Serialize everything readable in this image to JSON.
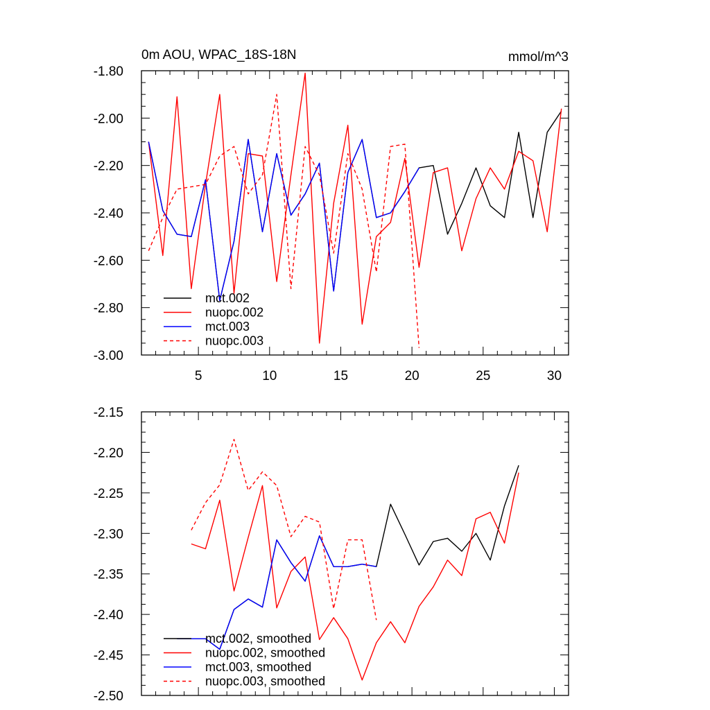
{
  "chart_data": [
    {
      "type": "line",
      "title": "0m AOU, WPAC_18S-18N",
      "units": "mmol/m^3",
      "xlim": [
        1,
        31
      ],
      "ylim": [
        -3.0,
        -1.8
      ],
      "xticks": [
        5,
        10,
        15,
        20,
        25,
        30
      ],
      "xtick_labels": [
        "5",
        "10",
        "15",
        "20",
        "25",
        "30"
      ],
      "yticks": [
        -3.0,
        -2.8,
        -2.6,
        -2.4,
        -2.2,
        -2.0,
        -1.8
      ],
      "ytick_labels": [
        "-3.00",
        "-2.80",
        "-2.60",
        "-2.40",
        "-2.20",
        "-2.00",
        "-1.80"
      ],
      "legend": "bottom-left",
      "series": [
        {
          "name": "mct.002",
          "color": "#000000",
          "dash": "solid",
          "x": [
            1.5,
            2.5,
            3.5,
            4.5,
            5.5,
            6.5,
            7.5,
            8.5,
            9.5,
            10.5,
            11.5,
            12.5,
            13.5,
            14.5,
            15.5,
            16.5,
            17.5,
            18.5,
            19.5,
            20.5,
            21.5,
            22.5,
            23.5,
            24.5,
            25.5,
            26.5,
            27.5,
            28.5,
            29.5,
            30.5
          ],
          "values": [
            -2.1,
            -2.39,
            -2.49,
            -2.5,
            -2.26,
            -2.77,
            -2.52,
            -2.09,
            -2.48,
            -2.15,
            -2.41,
            -2.32,
            -2.19,
            -2.73,
            -2.23,
            -2.09,
            -2.42,
            -2.4,
            -2.31,
            -2.21,
            -2.2,
            -2.49,
            -2.36,
            -2.21,
            -2.37,
            -2.42,
            -2.06,
            -2.42,
            -2.06,
            -1.97
          ]
        },
        {
          "name": "nuopc.002",
          "color": "#ff0000",
          "dash": "solid",
          "x": [
            1.5,
            2.5,
            3.5,
            4.5,
            5.5,
            6.5,
            7.5,
            8.5,
            9.5,
            10.5,
            11.5,
            12.5,
            13.5,
            14.5,
            15.5,
            16.5,
            17.5,
            18.5,
            19.5,
            20.5,
            21.5,
            22.5,
            23.5,
            24.5,
            25.5,
            26.5,
            27.5,
            28.5,
            29.5,
            30.5
          ],
          "values": [
            -2.1,
            -2.58,
            -1.91,
            -2.72,
            -2.28,
            -1.9,
            -2.74,
            -2.15,
            -2.16,
            -2.69,
            -2.24,
            -1.81,
            -2.95,
            -2.36,
            -2.03,
            -2.87,
            -2.5,
            -2.44,
            -2.17,
            -2.63,
            -2.23,
            -2.21,
            -2.56,
            -2.34,
            -2.21,
            -2.3,
            -2.14,
            -2.18,
            -2.48,
            -1.96
          ]
        },
        {
          "name": "mct.003",
          "color": "#0000ff",
          "dash": "solid",
          "x": [
            1.5,
            2.5,
            3.5,
            4.5,
            5.5,
            6.5,
            7.5,
            8.5,
            9.5,
            10.5,
            11.5,
            12.5,
            13.5,
            14.5,
            15.5,
            16.5,
            17.5,
            18.5,
            19.5,
            20.5
          ],
          "values": [
            -2.1,
            -2.39,
            -2.49,
            -2.5,
            -2.26,
            -2.77,
            -2.52,
            -2.09,
            -2.48,
            -2.15,
            -2.41,
            -2.32,
            -2.19,
            -2.73,
            -2.23,
            -2.09,
            -2.42,
            -2.4,
            -2.31,
            -2.21
          ]
        },
        {
          "name": "nuopc.003",
          "color": "#ff0000",
          "dash": "dashed",
          "x": [
            1.5,
            2.5,
            3.5,
            4.5,
            5.5,
            6.5,
            7.5,
            8.5,
            9.5,
            10.5,
            11.5,
            12.5,
            13.5,
            14.5,
            15.5,
            16.5,
            17.5,
            18.5,
            19.5,
            20.5
          ],
          "values": [
            -2.56,
            -2.42,
            -2.3,
            -2.29,
            -2.28,
            -2.16,
            -2.12,
            -2.32,
            -2.24,
            -1.9,
            -2.72,
            -2.12,
            -2.24,
            -2.57,
            -2.15,
            -2.3,
            -2.65,
            -2.12,
            -2.11,
            -2.97
          ]
        }
      ]
    },
    {
      "type": "line",
      "title": "",
      "xlim": [
        1,
        31
      ],
      "ylim": [
        -2.5,
        -2.15
      ],
      "xticks": [
        5,
        10,
        15,
        20,
        25,
        30
      ],
      "xtick_labels": [],
      "yticks": [
        -2.5,
        -2.45,
        -2.4,
        -2.35,
        -2.3,
        -2.25,
        -2.2,
        -2.15
      ],
      "ytick_labels": [
        "-2.50",
        "-2.45",
        "-2.40",
        "-2.35",
        "-2.30",
        "-2.25",
        "-2.20",
        "-2.15"
      ],
      "legend": "bottom-left",
      "series": [
        {
          "name": "mct.002, smoothed",
          "color": "#000000",
          "dash": "solid",
          "x": [
            3.5,
            4.5,
            5.5,
            6.5,
            7.5,
            8.5,
            9.5,
            10.5,
            11.5,
            12.5,
            13.5,
            14.5,
            15.5,
            16.5,
            17.5,
            18.5,
            19.5,
            20.5,
            21.5,
            22.5,
            23.5,
            24.5,
            25.5,
            26.5,
            27.5
          ],
          "values": [
            -2.43,
            -2.43,
            -2.43,
            -2.443,
            -2.394,
            -2.381,
            -2.391,
            -2.308,
            -2.336,
            -2.359,
            -2.303,
            -2.341,
            -2.341,
            -2.338,
            -2.341,
            -2.264,
            -2.301,
            -2.339,
            -2.31,
            -2.306,
            -2.322,
            -2.3,
            -2.333,
            -2.266,
            -2.216
          ]
        },
        {
          "name": "nuopc.002, smoothed",
          "color": "#ff0000",
          "dash": "solid",
          "x": [
            4.5,
            5.5,
            6.5,
            7.5,
            8.5,
            9.5,
            10.5,
            11.5,
            12.5,
            13.5,
            14.5,
            15.5,
            16.5,
            17.5,
            18.5,
            19.5,
            20.5,
            21.5,
            22.5,
            23.5,
            24.5,
            25.5,
            26.5,
            27.5
          ],
          "values": [
            -2.313,
            -2.319,
            -2.259,
            -2.371,
            -2.305,
            -2.241,
            -2.392,
            -2.347,
            -2.329,
            -2.431,
            -2.404,
            -2.43,
            -2.481,
            -2.435,
            -2.409,
            -2.435,
            -2.39,
            -2.366,
            -2.333,
            -2.352,
            -2.282,
            -2.274,
            -2.312,
            -2.225
          ]
        },
        {
          "name": "mct.003, smoothed",
          "color": "#0000ff",
          "dash": "solid",
          "x": [
            3.5,
            4.5,
            5.5,
            6.5,
            7.5,
            8.5,
            9.5,
            10.5,
            11.5,
            12.5,
            13.5,
            14.5,
            15.5,
            16.5,
            17.5
          ],
          "values": [
            -2.43,
            -2.43,
            -2.43,
            -2.443,
            -2.394,
            -2.381,
            -2.391,
            -2.308,
            -2.336,
            -2.359,
            -2.303,
            -2.341,
            -2.341,
            -2.338,
            -2.341
          ]
        },
        {
          "name": "nuopc.003, smoothed",
          "color": "#ff0000",
          "dash": "dashed",
          "x": [
            4.5,
            5.5,
            6.5,
            7.5,
            8.5,
            9.5,
            10.5,
            11.5,
            12.5,
            13.5,
            14.5,
            15.5,
            16.5,
            17.5
          ],
          "values": [
            -2.296,
            -2.262,
            -2.24,
            -2.184,
            -2.247,
            -2.224,
            -2.241,
            -2.304,
            -2.279,
            -2.286,
            -2.393,
            -2.308,
            -2.308,
            -2.407
          ]
        }
      ]
    }
  ]
}
